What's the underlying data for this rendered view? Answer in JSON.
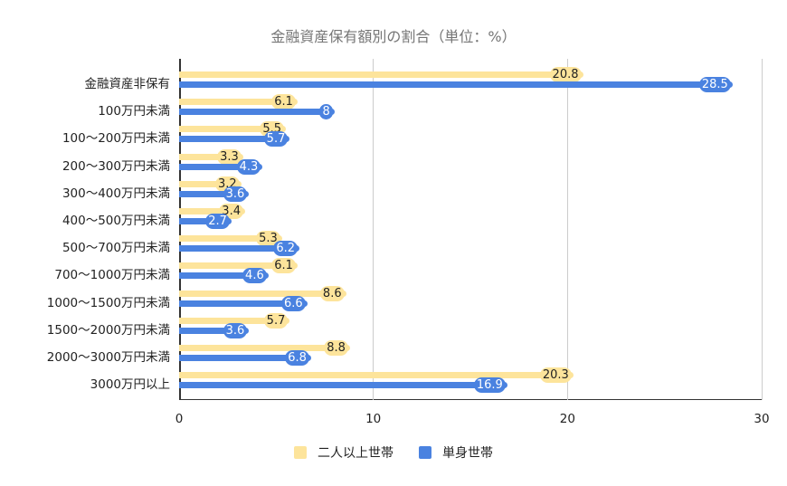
{
  "chart_data": {
    "type": "bar",
    "orientation": "horizontal",
    "title": "金融資産保有額別の割合（単位：%）",
    "xlabel": "",
    "ylabel": "",
    "xlim": [
      0,
      30
    ],
    "xticks": [
      "0",
      "10",
      "20",
      "30"
    ],
    "grid": true,
    "legend_position": "bottom",
    "categories": [
      "金融資産非保有",
      "100万円未満",
      "100〜200万円未満",
      "200〜300万円未満",
      "300〜400万円未満",
      "400〜500万円未満",
      "500〜700万円未満",
      "700〜1000万円未満",
      "1000〜1500万円未満",
      "1500〜2000万円未満",
      "2000〜3000万円未満",
      "3000万円以上"
    ],
    "series": [
      {
        "name": "二人以上世帯",
        "color": "#fde49b",
        "values": [
          20.8,
          6.1,
          5.5,
          3.3,
          3.2,
          3.4,
          5.3,
          6.1,
          8.6,
          5.7,
          8.8,
          20.3
        ]
      },
      {
        "name": "単身世帯",
        "color": "#4a82e0",
        "values": [
          28.5,
          8,
          5.7,
          4.3,
          3.6,
          2.7,
          6.2,
          4.6,
          6.6,
          3.6,
          6.8,
          16.9
        ]
      }
    ]
  }
}
